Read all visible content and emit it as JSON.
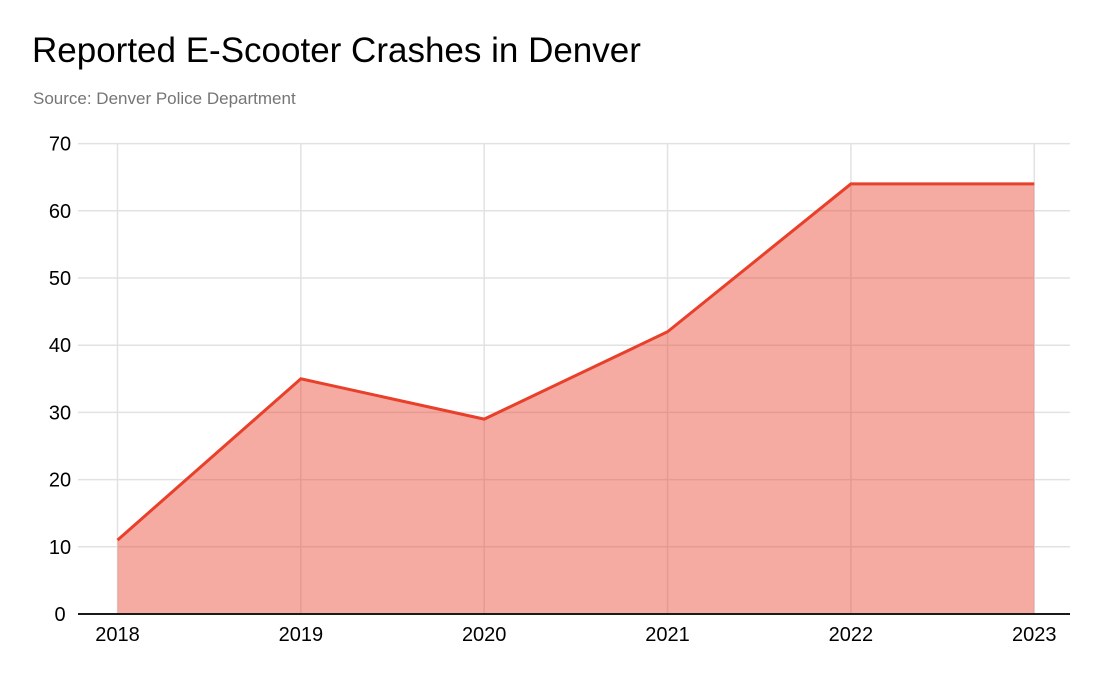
{
  "chart_data": {
    "type": "area",
    "title": "Reported E-Scooter Crashes in Denver",
    "subtitle": "Source: Denver Police Department",
    "categories": [
      "2018",
      "2019",
      "2020",
      "2021",
      "2022",
      "2023"
    ],
    "values": [
      11,
      35,
      29,
      42,
      64,
      64
    ],
    "xlabel": "",
    "ylabel": "",
    "ylim": [
      0,
      70
    ],
    "yticks": [
      0,
      10,
      20,
      30,
      40,
      50,
      60,
      70
    ],
    "grid": true,
    "legend": "none",
    "colors": {
      "line": "#e8402b",
      "fill": "rgba(232, 64, 43, 0.44)",
      "grid": "#e2e2e2",
      "baseline": "#1a1a1a",
      "tick_text": "#000000",
      "title_text": "#000000",
      "subtitle_text": "#757575",
      "background": "#ffffff"
    }
  }
}
